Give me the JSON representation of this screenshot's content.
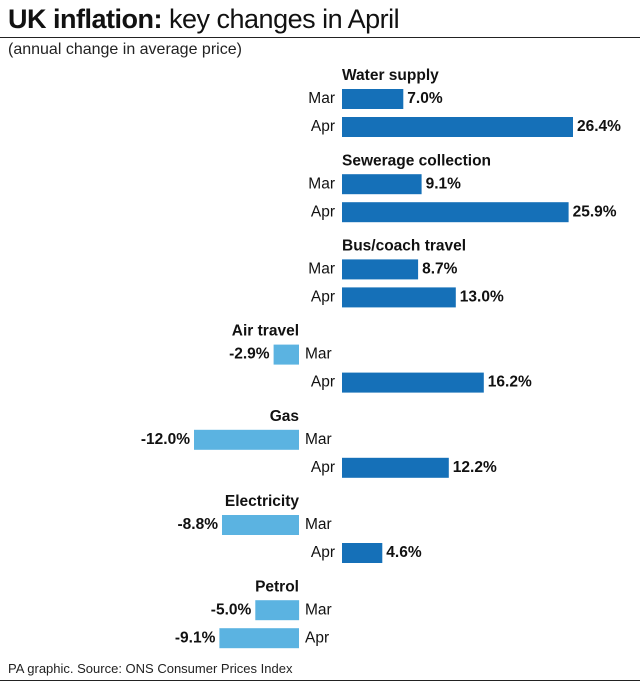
{
  "title": {
    "bold": "UK inflation:",
    "light": "key changes in April"
  },
  "subtitle": "(annual change in average price)",
  "source": "PA graphic. Source: ONS Consumer Prices Index",
  "chart_data": {
    "type": "bar",
    "orientation": "horizontal",
    "title": "UK inflation: key changes in April",
    "subtitle": "(annual change in average price)",
    "unit": "%",
    "colors": {
      "positive": "#1570b8",
      "negative": "#5bb3e1"
    },
    "groups": [
      {
        "category": "Water supply",
        "bars": [
          {
            "label": "Mar",
            "value": 7.0,
            "value_label": "7.0%"
          },
          {
            "label": "Apr",
            "value": 26.4,
            "value_label": "26.4%"
          }
        ]
      },
      {
        "category": "Sewerage collection",
        "bars": [
          {
            "label": "Mar",
            "value": 9.1,
            "value_label": "9.1%"
          },
          {
            "label": "Apr",
            "value": 25.9,
            "value_label": "25.9%"
          }
        ]
      },
      {
        "category": "Bus/coach travel",
        "bars": [
          {
            "label": "Mar",
            "value": 8.7,
            "value_label": "8.7%"
          },
          {
            "label": "Apr",
            "value": 13.0,
            "value_label": "13.0%"
          }
        ]
      },
      {
        "category": "Air travel",
        "bars": [
          {
            "label": "Mar",
            "value": -2.9,
            "value_label": "-2.9%"
          },
          {
            "label": "Apr",
            "value": 16.2,
            "value_label": "16.2%"
          }
        ]
      },
      {
        "category": "Gas",
        "bars": [
          {
            "label": "Mar",
            "value": -12.0,
            "value_label": "-12.0%"
          },
          {
            "label": "Apr",
            "value": 12.2,
            "value_label": "12.2%"
          }
        ]
      },
      {
        "category": "Electricity",
        "bars": [
          {
            "label": "Mar",
            "value": -8.8,
            "value_label": "-8.8%"
          },
          {
            "label": "Apr",
            "value": 4.6,
            "value_label": "4.6%"
          }
        ]
      },
      {
        "category": "Petrol",
        "bars": [
          {
            "label": "Mar",
            "value": -5.0,
            "value_label": "-5.0%"
          },
          {
            "label": "Apr",
            "value": -9.1,
            "value_label": "-9.1%"
          }
        ]
      }
    ]
  }
}
